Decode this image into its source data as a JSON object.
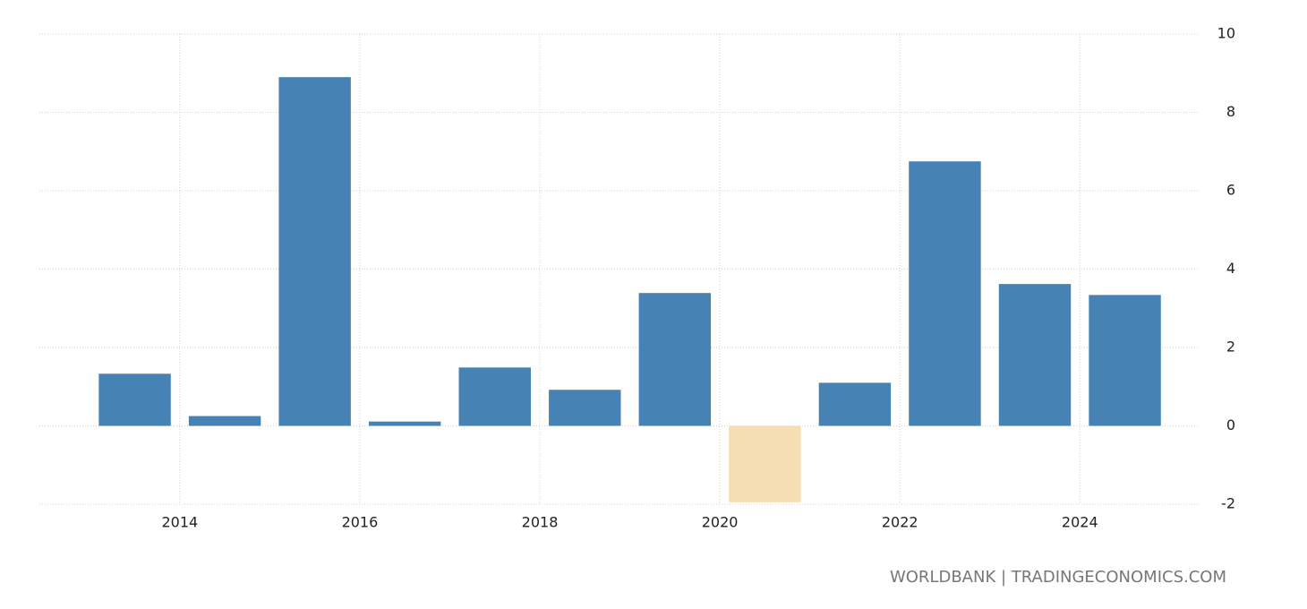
{
  "chart_data": {
    "type": "bar",
    "x": [
      2013,
      2014,
      2015,
      2016,
      2017,
      2018,
      2019,
      2020,
      2021,
      2022,
      2023,
      2024
    ],
    "values": [
      1.33,
      0.25,
      8.9,
      0.11,
      1.49,
      0.92,
      3.39,
      -1.95,
      1.1,
      6.75,
      3.62,
      3.34
    ],
    "color": "#4682b4",
    "negative_color": "#f5deb3",
    "xlim": [
      2012.44,
      2025.33
    ],
    "xticks": [
      2014,
      2016,
      2018,
      2020,
      2022,
      2024
    ],
    "ylim": [
      -2,
      10
    ],
    "yticks": [
      -2,
      0,
      2,
      4,
      6,
      8,
      10
    ],
    "grid": true,
    "source": "WORLDBANK | TRADINGECONOMICS.COM"
  }
}
